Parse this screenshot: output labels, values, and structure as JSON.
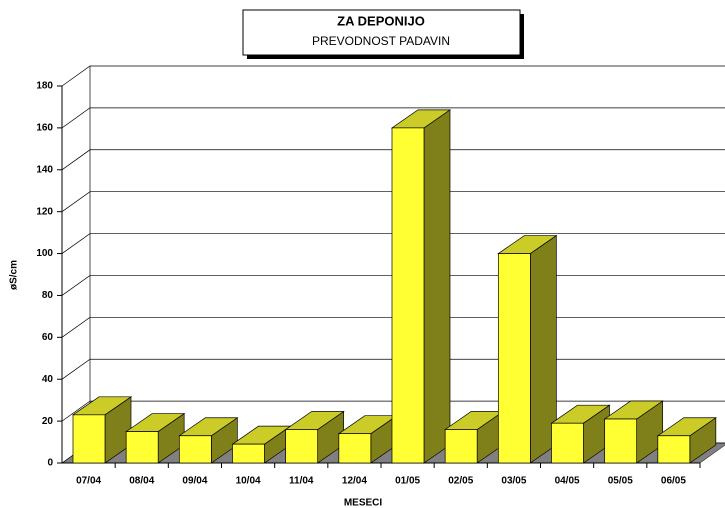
{
  "chart_data": {
    "type": "bar3d",
    "title": "ZA DEPONIJO",
    "subtitle": "PREVODNOST PADAVIN",
    "xlabel": "MESECI",
    "ylabel": "øS/cm",
    "categories": [
      "07/04",
      "08/04",
      "09/04",
      "10/04",
      "11/04",
      "12/04",
      "01/05",
      "02/05",
      "03/05",
      "04/05",
      "05/05",
      "06/05"
    ],
    "values": [
      23,
      15,
      13,
      9,
      16,
      14,
      160,
      16,
      100,
      19,
      21,
      13
    ],
    "color": "#ffff33",
    "ylim": [
      0,
      180
    ],
    "yticks": [
      0,
      20,
      40,
      60,
      80,
      100,
      120,
      140,
      160,
      180
    ],
    "grid": true
  }
}
